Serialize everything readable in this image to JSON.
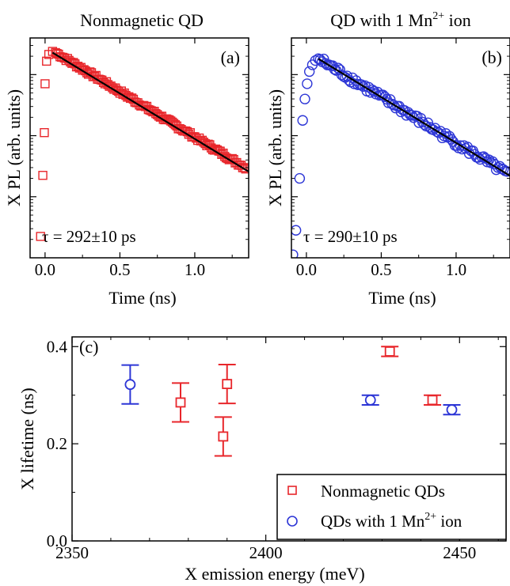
{
  "colors": {
    "nonmagnetic": "#e8262b",
    "magnetic": "#2d36d6",
    "fit": "#000000",
    "axis": "#000000"
  },
  "chart_data": [
    {
      "type": "scatter",
      "panel": "(a)",
      "title": "Nonmagnetic QD",
      "title_sup": "",
      "title_suffix": "",
      "xlabel": "Time (ns)",
      "ylabel": "X PL (arb. units)",
      "annotation": "τ = 292±10 ps",
      "xlim": [
        -0.1,
        1.36
      ],
      "ylog": true,
      "ylim_decades": [
        0,
        3.6
      ],
      "xticks": [
        "0.0",
        "0.5",
        "1.0"
      ],
      "xtick_values": [
        0,
        0.5,
        1.0
      ],
      "marker": "square",
      "series": [
        {
          "name": "",
          "color": "#e8262b",
          "rise": [
            [
              -0.03,
              0.35
            ],
            [
              -0.015,
              1.35
            ],
            [
              -0.005,
              2.05
            ],
            [
              0.0,
              2.85
            ],
            [
              0.01,
              3.22
            ],
            [
              0.025,
              3.33
            ],
            [
              0.05,
              3.38
            ],
            [
              0.07,
              3.36
            ]
          ],
          "decay": {
            "t_start": 0.07,
            "logy_start": 3.36,
            "tau_ns": 0.292,
            "t_end": 1.35,
            "step": 0.01,
            "noise": 0.03
          }
        }
      ],
      "fit": {
        "t_start": 0.05,
        "logy_start": 3.36,
        "tau_ns": 0.292,
        "t_end": 1.36
      }
    },
    {
      "type": "scatter",
      "panel": "(b)",
      "title": "QD with 1 Mn",
      "title_sup": "2+",
      "title_suffix": " ion",
      "xlabel": "Time (ns)",
      "ylabel": "X PL (arb. units)",
      "annotation": "τ = 290±10 ps",
      "xlim": [
        -0.1,
        1.36
      ],
      "ylog": true,
      "ylim_decades": [
        0,
        3.6
      ],
      "xticks": [
        "0.0",
        "0.5",
        "1.0"
      ],
      "xtick_values": [
        0,
        0.5,
        1.0
      ],
      "marker": "circle",
      "series": [
        {
          "name": "",
          "color": "#2d36d6",
          "rise": [
            [
              -0.09,
              0.05
            ],
            [
              -0.07,
              0.45
            ],
            [
              -0.045,
              1.3
            ],
            [
              -0.025,
              2.25
            ],
            [
              -0.01,
              2.6
            ],
            [
              0.005,
              2.85
            ],
            [
              0.02,
              3.05
            ],
            [
              0.04,
              3.16
            ],
            [
              0.06,
              3.23
            ],
            [
              0.08,
              3.26
            ]
          ],
          "decay": {
            "t_start": 0.08,
            "logy_start": 3.26,
            "tau_ns": 0.29,
            "t_end": 1.35,
            "step": 0.012,
            "noise": 0.06
          }
        }
      ],
      "fit": {
        "t_start": 0.08,
        "logy_start": 3.26,
        "tau_ns": 0.29,
        "t_end": 1.36
      }
    },
    {
      "type": "scatter",
      "panel": "(c)",
      "xlabel": "X emission energy (meV)",
      "ylabel": "X lifetime (ns)",
      "xlim": [
        2350,
        2462
      ],
      "ylim": [
        0.0,
        0.42
      ],
      "xticks": [
        "2350",
        "2400",
        "2450"
      ],
      "xtick_values": [
        2350,
        2400,
        2450
      ],
      "yticks": [
        "0.0",
        "0.2",
        "0.4"
      ],
      "ytick_values": [
        0.0,
        0.2,
        0.4
      ],
      "legend_position": "bottom-right",
      "series": [
        {
          "name": "Nonmagnetic QDs",
          "name_sup": "",
          "name_suffix": "",
          "marker": "square",
          "color": "#e8262b",
          "points": [
            [
              2378,
              0.285,
              0.04
            ],
            [
              2389,
              0.215,
              0.04
            ],
            [
              2390,
              0.323,
              0.04
            ],
            [
              2432,
              0.39,
              0.01
            ],
            [
              2443,
              0.29,
              0.01
            ]
          ]
        },
        {
          "name": "QDs with 1 Mn",
          "name_sup": "2+",
          "name_suffix": " ion",
          "marker": "circle",
          "color": "#2d36d6",
          "points": [
            [
              2365,
              0.322,
              0.04
            ],
            [
              2427,
              0.29,
              0.01
            ],
            [
              2448,
              0.27,
              0.01
            ]
          ]
        }
      ]
    }
  ]
}
